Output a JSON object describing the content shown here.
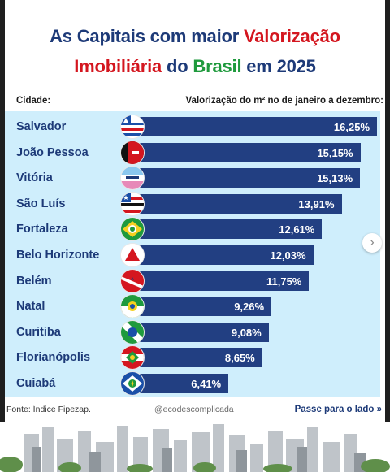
{
  "title": {
    "line1_part1": "As Capitais com maior ",
    "line1_part2": "Valorização",
    "line2_part1": "Imobiliária",
    "line2_part2": " do ",
    "line2_part3": "Brasil",
    "line2_part4": " em 2025"
  },
  "headers": {
    "city": "Cidade:",
    "value": "Valorização do m² no de janeiro a dezembro:"
  },
  "footer": {
    "source": "Fonte: Índice Fipezap.",
    "handle": "@ecodescomplicada",
    "next": "Passe para o lado",
    "next_icon": "»"
  },
  "colors": {
    "navy": "#1d3a78",
    "bar": "#223f82",
    "red": "#d4161f",
    "green": "#1f9a3d",
    "panel": "#cfeefc"
  },
  "chart_data": {
    "type": "bar",
    "orientation": "horizontal",
    "categories": [
      "Salvador",
      "João Pessoa",
      "Vitória",
      "São Luís",
      "Fortaleza",
      "Belo Horizonte",
      "Belém",
      "Natal",
      "Curitiba",
      "Florianópolis",
      "Cuiabá"
    ],
    "values": [
      16.25,
      15.15,
      15.13,
      13.91,
      12.61,
      12.03,
      11.75,
      9.26,
      9.08,
      8.65,
      6.41
    ],
    "labels": [
      "16,25%",
      "15,15%",
      "15,13%",
      "13,91%",
      "12,61%",
      "12,03%",
      "11,75%",
      "9,26%",
      "9,08%",
      "8,65%",
      "6,41%"
    ],
    "icons": [
      "flag-bahia-icon",
      "flag-paraiba-icon",
      "flag-espirito-santo-icon",
      "flag-maranhao-icon",
      "flag-ceara-icon",
      "flag-minas-gerais-icon",
      "flag-para-icon",
      "flag-rio-grande-do-norte-icon",
      "flag-parana-icon",
      "flag-santa-catarina-icon",
      "flag-mato-grosso-icon"
    ],
    "grid": false
  }
}
